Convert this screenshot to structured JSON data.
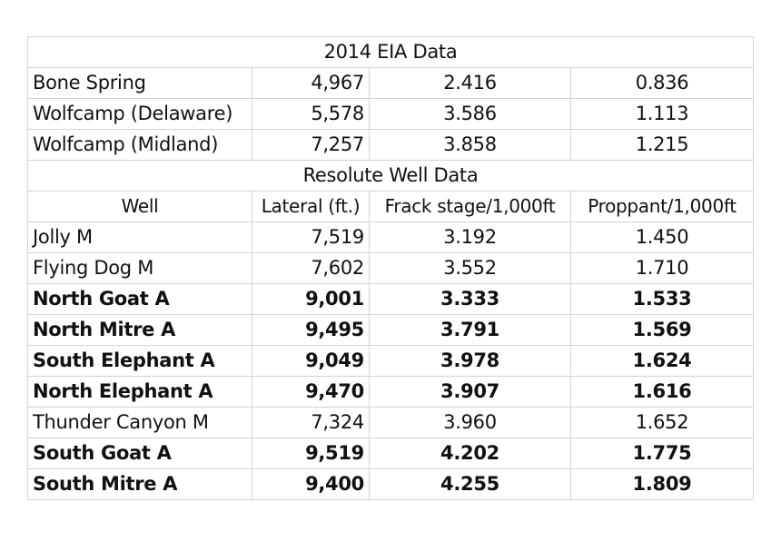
{
  "eia_section": {
    "title": "2014 EIA Data",
    "rows": [
      {
        "name": "Bone Spring",
        "lateral": "4,967",
        "frack": "2.416",
        "proppant": "0.836",
        "bold": false
      },
      {
        "name": "Wolfcamp (Delaware)",
        "lateral": "5,578",
        "frack": "3.586",
        "proppant": "1.113",
        "bold": false
      },
      {
        "name": "Wolfcamp (Midland)",
        "lateral": "7,257",
        "frack": "3.858",
        "proppant": "1.215",
        "bold": false
      }
    ]
  },
  "resolute_section": {
    "title": "Resolute Well Data",
    "headers": {
      "well": "Well",
      "lateral": "Lateral (ft.)",
      "frack": "Frack stage/1,000ft",
      "proppant": "Proppant/1,000ft"
    },
    "rows": [
      {
        "name": "Jolly M",
        "lateral": "7,519",
        "frack": "3.192",
        "proppant": "1.450",
        "bold": false
      },
      {
        "name": "Flying Dog M",
        "lateral": "7,602",
        "frack": "3.552",
        "proppant": "1.710",
        "bold": false
      },
      {
        "name": "North Goat A",
        "lateral": "9,001",
        "frack": "3.333",
        "proppant": "1.533",
        "bold": true
      },
      {
        "name": "North Mitre A",
        "lateral": "9,495",
        "frack": "3.791",
        "proppant": "1.569",
        "bold": true
      },
      {
        "name": "South Elephant A",
        "lateral": "9,049",
        "frack": "3.978",
        "proppant": "1.624",
        "bold": true
      },
      {
        "name": "North Elephant A",
        "lateral": "9,470",
        "frack": "3.907",
        "proppant": "1.616",
        "bold": true
      },
      {
        "name": "Thunder Canyon M",
        "lateral": "7,324",
        "frack": "3.960",
        "proppant": "1.652",
        "bold": false
      },
      {
        "name": "South Goat A",
        "lateral": "9,519",
        "frack": "4.202",
        "proppant": "1.775",
        "bold": true
      },
      {
        "name": "South Mitre A",
        "lateral": "9,400",
        "frack": "4.255",
        "proppant": "1.809",
        "bold": true
      }
    ]
  }
}
